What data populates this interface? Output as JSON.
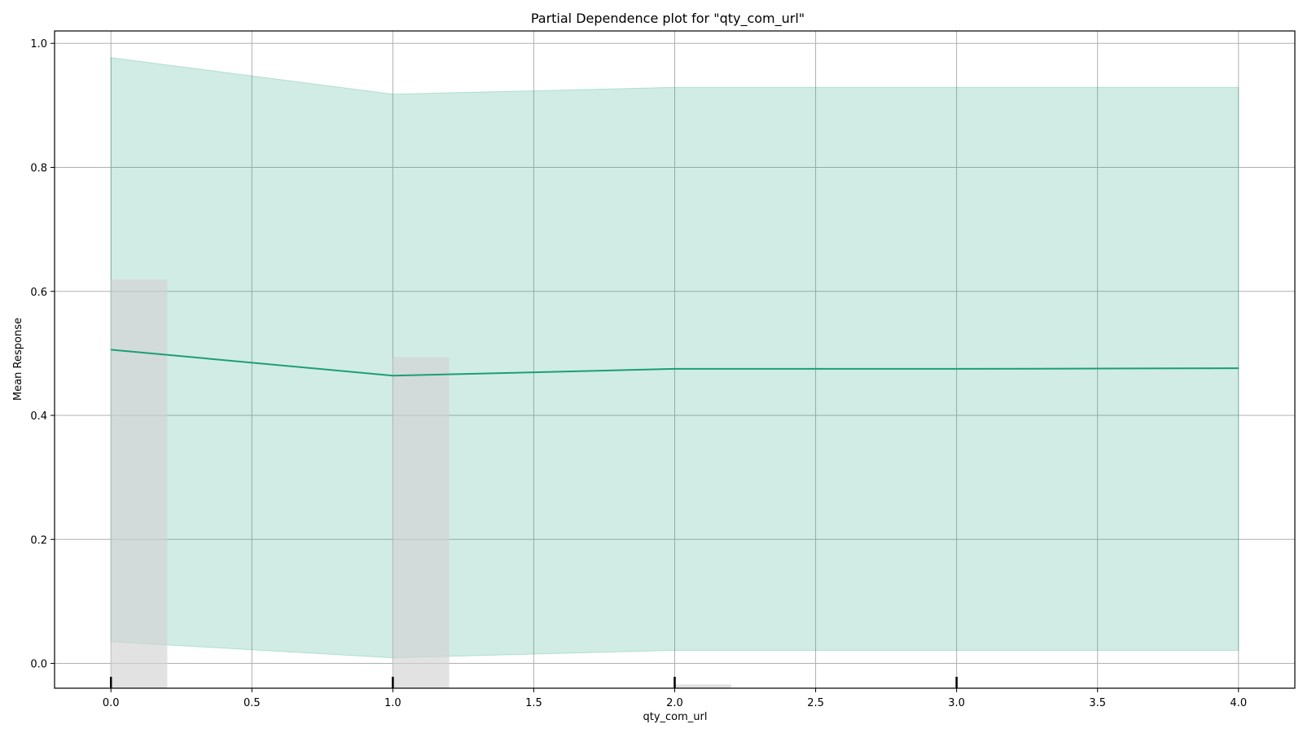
{
  "chart_data": {
    "type": "line",
    "title": "Partial Dependence plot for \"qty_com_url\"",
    "xlabel": "qty_com_url",
    "ylabel": "Mean Response",
    "xlim": [
      -0.2,
      4.2
    ],
    "ylim": [
      -0.04,
      1.02
    ],
    "x_ticks": [
      0.0,
      0.5,
      1.0,
      1.5,
      2.0,
      2.5,
      3.0,
      3.5,
      4.0
    ],
    "x_tick_labels": [
      "0.0",
      "0.5",
      "1.0",
      "1.5",
      "2.0",
      "2.5",
      "3.0",
      "3.5",
      "4.0"
    ],
    "y_ticks": [
      0.0,
      0.2,
      0.4,
      0.6,
      0.8,
      1.0
    ],
    "y_tick_labels": [
      "0.0",
      "0.2",
      "0.4",
      "0.6",
      "0.8",
      "1.0"
    ],
    "grid": true,
    "series": [
      {
        "x": [
          0,
          1,
          2,
          3,
          4
        ],
        "values": [
          0.506,
          0.464,
          0.475,
          0.475,
          0.476
        ],
        "lower": [
          0.035,
          0.009,
          0.021,
          0.021,
          0.021
        ],
        "upper": [
          0.977,
          0.918,
          0.929,
          0.929,
          0.929
        ]
      }
    ],
    "histogram": {
      "x": [
        0,
        1,
        2
      ],
      "width": 0.2,
      "tops": [
        0.619,
        0.494,
        -0.034
      ]
    },
    "rug_x": [
      0,
      1,
      2,
      3
    ],
    "colors": {
      "line": "#1b9e77",
      "band": "#1b9e77",
      "histogram": "#d3d3d3",
      "grid": "#b0b0b0"
    }
  }
}
